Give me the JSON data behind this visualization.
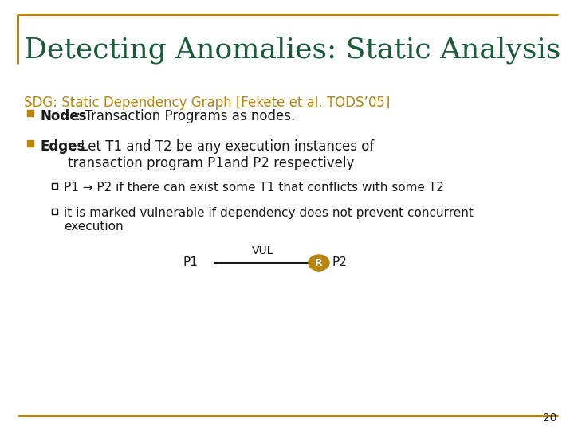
{
  "title": "Detecting Anomalies: Static Analysis",
  "title_color": "#1a5c3a",
  "title_fontsize": 26,
  "border_color": "#B8860B",
  "bg_color": "#ffffff",
  "sdg_heading": "SDG: Static Dependency Graph [Fekete et al. TODS’05]",
  "sdg_color": "#B8860B",
  "sdg_fontsize": 12,
  "bullet_color": "#B8860B",
  "bullet_fontsize": 12,
  "text_color": "#1a1a1a",
  "bullet1_bold": "Nodes",
  "bullet1_rest": " : Transaction Programs as nodes.",
  "bullet2_bold": "Edges",
  "bullet2_rest": " : Let T1 and T2 be any execution instances of\ntransaction program P1and P2 respectively",
  "sub_bullet1": "P1 → P2 if there can exist some T1 that conflicts with some T2",
  "sub_bullet2": "it is marked vulnerable if dependency does not prevent concurrent\nexecution",
  "diagram_p1": "P1",
  "diagram_p2": "P2",
  "diagram_label": "VUL",
  "diagram_node_color": "#B8860B",
  "page_number": "20",
  "dark_green": "#1a5c3a",
  "main_text_color": "#1a1a1a",
  "sub_fontsize": 11
}
